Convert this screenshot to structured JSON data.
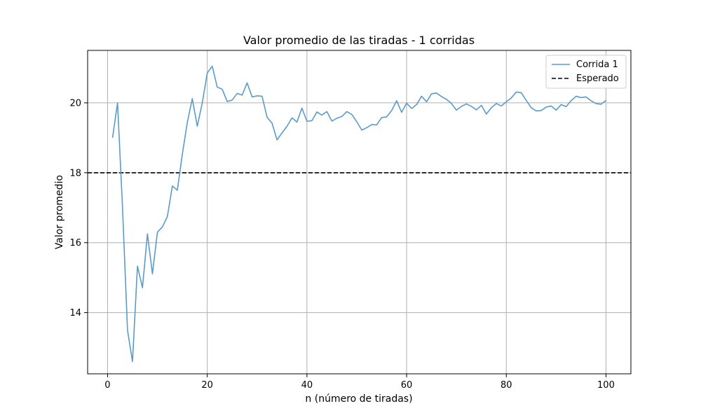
{
  "chart_data": {
    "type": "line",
    "title": "Valor promedio de las tiradas - 1 corridas",
    "xlabel": "n (número de tiradas)",
    "ylabel": "Valor promedio",
    "xlim": [
      -4,
      105
    ],
    "ylim": [
      12.25,
      21.5
    ],
    "xticks": [
      0,
      20,
      40,
      60,
      80,
      100
    ],
    "yticks": [
      14,
      16,
      18,
      20
    ],
    "grid": true,
    "legend_position": "upper-right",
    "colors": {
      "series": "#5b9bcb",
      "reference": "#000000",
      "grid": "#b0b0b0"
    },
    "series": [
      {
        "name": "Corrida 1",
        "style": "solid",
        "x": [
          1,
          2,
          3,
          4,
          5,
          6,
          7,
          8,
          9,
          10,
          11,
          12,
          13,
          14,
          15,
          16,
          17,
          18,
          19,
          20,
          21,
          22,
          23,
          24,
          25,
          26,
          27,
          28,
          29,
          30,
          31,
          32,
          33,
          34,
          35,
          36,
          37,
          38,
          39,
          40,
          41,
          42,
          43,
          44,
          45,
          46,
          47,
          48,
          49,
          50,
          51,
          52,
          53,
          54,
          55,
          56,
          57,
          58,
          59,
          60,
          61,
          62,
          63,
          64,
          65,
          66,
          67,
          68,
          69,
          70,
          71,
          72,
          73,
          74,
          75,
          76,
          77,
          78,
          79,
          80,
          81,
          82,
          83,
          84,
          85,
          86,
          87,
          88,
          89,
          90,
          91,
          92,
          93,
          94,
          95,
          96,
          97,
          98,
          99,
          100
        ],
        "values": [
          19.0,
          20.0,
          17.0,
          13.5,
          12.6,
          15.33,
          14.71,
          16.25,
          15.11,
          16.3,
          16.45,
          16.75,
          17.62,
          17.5,
          18.53,
          19.44,
          20.12,
          19.33,
          20.0,
          20.85,
          21.05,
          20.45,
          20.39,
          20.04,
          20.08,
          20.27,
          20.22,
          20.57,
          20.17,
          20.2,
          20.19,
          19.59,
          19.42,
          18.94,
          19.14,
          19.33,
          19.57,
          19.45,
          19.85,
          19.47,
          19.49,
          19.74,
          19.65,
          19.75,
          19.48,
          19.56,
          19.61,
          19.75,
          19.67,
          19.46,
          19.22,
          19.29,
          19.38,
          19.37,
          19.58,
          19.6,
          19.78,
          20.06,
          19.73,
          19.99,
          19.84,
          19.95,
          20.19,
          20.03,
          20.26,
          20.28,
          20.18,
          20.1,
          19.98,
          19.79,
          19.9,
          19.97,
          19.9,
          19.8,
          19.93,
          19.68,
          19.86,
          19.98,
          19.91,
          20.03,
          20.14,
          20.31,
          20.29,
          20.07,
          19.86,
          19.77,
          19.78,
          19.88,
          19.91,
          19.79,
          19.95,
          19.89,
          20.06,
          20.19,
          20.15,
          20.17,
          20.06,
          19.98,
          19.96,
          20.07
        ]
      },
      {
        "name": "Esperado",
        "style": "dashed",
        "y_constant": 18.0
      }
    ]
  }
}
